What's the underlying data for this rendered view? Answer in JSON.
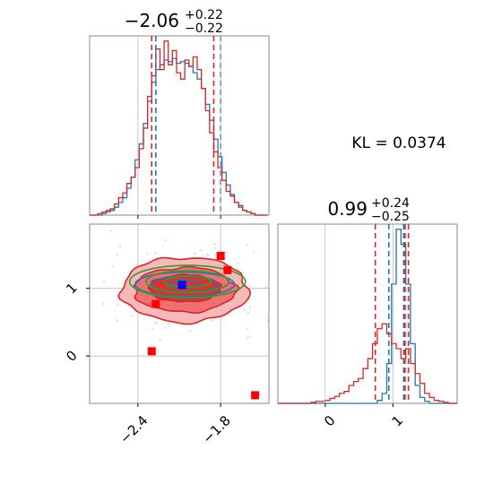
{
  "chart_data": [
    {
      "panel": "marginal-x",
      "type": "histogram",
      "title_value": "−2.06",
      "title_plus": "+0.22",
      "title_minus": "−0.22",
      "xlim": [
        -2.75,
        -1.45
      ],
      "bins": [
        -2.75,
        -2.72,
        -2.69,
        -2.66,
        -2.63,
        -2.6,
        -2.57,
        -2.54,
        -2.51,
        -2.48,
        -2.45,
        -2.42,
        -2.39,
        -2.36,
        -2.33,
        -2.3,
        -2.27,
        -2.24,
        -2.21,
        -2.18,
        -2.15,
        -2.12,
        -2.09,
        -2.06,
        -2.03,
        -2.0,
        -1.97,
        -1.94,
        -1.91,
        -1.88,
        -1.85,
        -1.82,
        -1.79,
        -1.76,
        -1.73,
        -1.7,
        -1.67,
        -1.64,
        -1.61,
        -1.58,
        -1.55,
        -1.52,
        -1.49,
        -1.46
      ],
      "series": [
        {
          "color": "#1f77b4",
          "counts": [
            0,
            0,
            0,
            1,
            2,
            3,
            5,
            8,
            11,
            17,
            24,
            35,
            45,
            58,
            72,
            84,
            92,
            95,
            98,
            97,
            99,
            96,
            97,
            96,
            94,
            90,
            86,
            80,
            70,
            60,
            48,
            37,
            27,
            19,
            13,
            8,
            5,
            3,
            2,
            1,
            0,
            0,
            0
          ]
        },
        {
          "color": "#d62728",
          "counts": [
            0,
            0,
            1,
            2,
            3,
            4,
            7,
            11,
            14,
            20,
            24,
            30,
            42,
            55,
            75,
            88,
            105,
            92,
            110,
            95,
            104,
            90,
            86,
            98,
            94,
            100,
            92,
            80,
            66,
            52,
            40,
            30,
            22,
            15,
            12,
            8,
            6,
            3,
            2,
            1,
            0,
            0,
            0
          ]
        }
      ],
      "lines": [
        {
          "x": -2.3,
          "color": "#d62728"
        },
        {
          "x": -2.27,
          "color": "#1f77b4"
        },
        {
          "x": -1.85,
          "color": "#d62728"
        },
        {
          "x": -1.8,
          "color": "#1f77b4"
        }
      ]
    },
    {
      "panel": "joint",
      "type": "contour-scatter",
      "xlim": [
        -2.75,
        -1.45
      ],
      "ylim": [
        -0.7,
        1.95
      ],
      "xticks": [
        -2.4,
        -1.8
      ],
      "xtick_labels": [
        "−2.4",
        "−1.8"
      ],
      "yticks": [
        0,
        1
      ],
      "ytick_labels": [
        "0",
        "1"
      ],
      "blue_point": {
        "x": -2.08,
        "y": 1.05
      },
      "red_squares": [
        {
          "x": -1.8,
          "y": 1.48
        },
        {
          "x": -1.75,
          "y": 1.27
        },
        {
          "x": -2.27,
          "y": 0.77
        },
        {
          "x": -2.3,
          "y": 0.07
        },
        {
          "x": -1.55,
          "y": -0.58
        }
      ],
      "contours": [
        {
          "color": "#d62728",
          "fill": "#f7b5b5",
          "cx": -2.06,
          "cy": 0.98,
          "rx": 0.46,
          "ry": 0.48
        },
        {
          "color": "#d62728",
          "fill": "#ee6b6b",
          "cx": -2.06,
          "cy": 0.98,
          "rx": 0.37,
          "ry": 0.33
        },
        {
          "color": "#d62728",
          "fill": "#dd2c2c",
          "cx": -2.06,
          "cy": 1.0,
          "rx": 0.26,
          "ry": 0.2
        },
        {
          "color": "#1f77b4",
          "fill": "none",
          "cx": -2.06,
          "cy": 1.06,
          "rx": 0.36,
          "ry": 0.18
        },
        {
          "color": "#1f77b4",
          "fill": "none",
          "cx": -2.06,
          "cy": 1.06,
          "rx": 0.24,
          "ry": 0.12
        },
        {
          "color": "#1f77b4",
          "fill": "none",
          "cx": -2.06,
          "cy": 1.06,
          "rx": 0.12,
          "ry": 0.06
        },
        {
          "color": "#2ca02c",
          "fill": "none",
          "cx": -2.04,
          "cy": 1.1,
          "rx": 0.42,
          "ry": 0.24
        },
        {
          "color": "#2ca02c",
          "fill": "none",
          "cx": -2.04,
          "cy": 1.1,
          "rx": 0.3,
          "ry": 0.16
        },
        {
          "color": "#2ca02c",
          "fill": "none",
          "cx": -2.04,
          "cy": 1.1,
          "rx": 0.17,
          "ry": 0.08
        }
      ]
    },
    {
      "panel": "marginal-y",
      "type": "histogram",
      "title_value": "0.99",
      "title_plus": "+0.24",
      "title_minus": "−0.25",
      "xlim": [
        -0.7,
        1.95
      ],
      "xticks": [
        0,
        1
      ],
      "xtick_labels": [
        "0",
        "1"
      ],
      "bins": [
        -0.7,
        -0.63,
        -0.56,
        -0.49,
        -0.42,
        -0.35,
        -0.28,
        -0.21,
        -0.14,
        -0.07,
        0.0,
        0.07,
        0.14,
        0.21,
        0.28,
        0.35,
        0.42,
        0.49,
        0.56,
        0.63,
        0.7,
        0.77,
        0.84,
        0.91,
        0.98,
        1.05,
        1.12,
        1.19,
        1.26,
        1.33,
        1.4,
        1.47,
        1.54,
        1.61,
        1.68,
        1.75,
        1.82,
        1.89,
        1.95
      ],
      "series": [
        {
          "color": "#1f77b4",
          "counts": [
            0,
            0,
            0,
            0,
            0,
            0,
            0,
            0,
            0,
            0,
            0,
            0,
            0,
            0,
            0,
            0,
            0,
            0,
            0,
            0,
            0,
            3,
            10,
            40,
            120,
            175,
            160,
            120,
            60,
            18,
            6,
            2,
            0,
            0,
            0,
            0,
            0,
            0
          ]
        },
        {
          "color": "#d62728",
          "counts": [
            0,
            0,
            0,
            0,
            0,
            0,
            0,
            1,
            2,
            2,
            3,
            5,
            7,
            10,
            12,
            18,
            22,
            25,
            35,
            45,
            60,
            75,
            80,
            70,
            60,
            55,
            45,
            55,
            40,
            30,
            20,
            10,
            6,
            3,
            2,
            1,
            0,
            0
          ]
        }
      ],
      "lines": [
        {
          "x": 0.74,
          "color": "#d62728"
        },
        {
          "x": 0.94,
          "color": "#1f77b4"
        },
        {
          "x": 1.18,
          "color": "#d62728"
        },
        {
          "x": 1.23,
          "color": "#d62728"
        },
        {
          "x": 1.16,
          "color": "#1f77b4"
        }
      ]
    }
  ],
  "kl_text": "KL = 0.0374"
}
